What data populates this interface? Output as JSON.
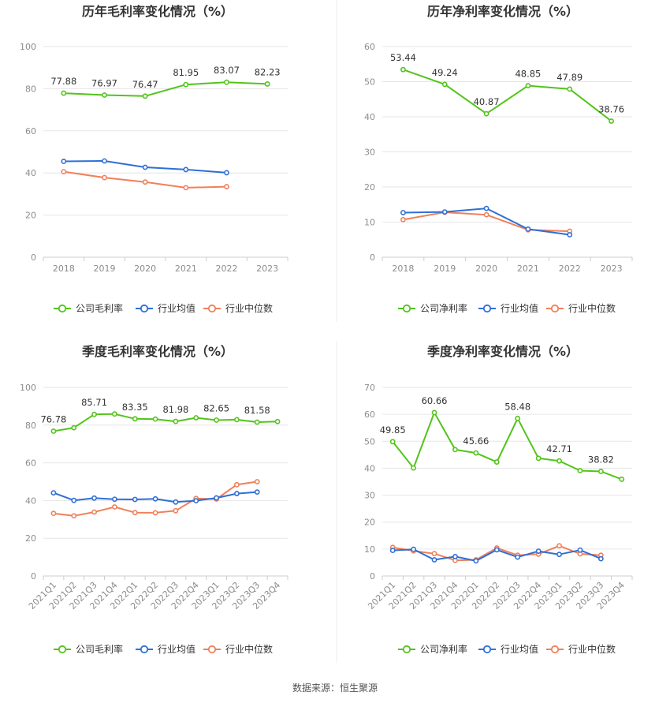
{
  "source_text": "数据来源：恒生聚源",
  "colors": {
    "company": "#52c41a",
    "industry_avg": "#2f6fd6",
    "industry_median": "#f0805a",
    "grid": "#e6e6e6",
    "axis": "#cccccc",
    "divider": "#eeeeee"
  },
  "chart_data": [
    {
      "id": "annual-gross",
      "type": "line",
      "title": "历年毛利率变化情况（%）",
      "categories": [
        "2018",
        "2019",
        "2020",
        "2021",
        "2022",
        "2023"
      ],
      "ylim": [
        0,
        100
      ],
      "yticks": [
        0,
        20,
        40,
        60,
        80,
        100
      ],
      "grid": true,
      "legend_position": "bottom",
      "x_rotated": false,
      "series": [
        {
          "name": "公司毛利率",
          "role": "company",
          "values": [
            77.88,
            76.97,
            76.47,
            81.95,
            83.07,
            82.23
          ],
          "labels": [
            "77.88",
            "76.97",
            "76.47",
            "81.95",
            "83.07",
            "82.23"
          ]
        },
        {
          "name": "行业均值",
          "role": "industry_avg",
          "values": [
            45.5,
            45.7,
            42.7,
            41.6,
            40.1,
            null
          ]
        },
        {
          "name": "行业中位数",
          "role": "industry_median",
          "values": [
            40.6,
            37.8,
            35.7,
            33.0,
            33.5,
            null
          ]
        }
      ]
    },
    {
      "id": "annual-net",
      "type": "line",
      "title": "历年净利率变化情况（%）",
      "categories": [
        "2018",
        "2019",
        "2020",
        "2021",
        "2022",
        "2023"
      ],
      "ylim": [
        0,
        60
      ],
      "yticks": [
        0,
        10,
        20,
        30,
        40,
        50,
        60
      ],
      "grid": true,
      "legend_position": "bottom",
      "x_rotated": false,
      "series": [
        {
          "name": "公司净利率",
          "role": "company",
          "values": [
            53.44,
            49.24,
            40.87,
            48.85,
            47.89,
            38.76
          ],
          "labels": [
            "53.44",
            "49.24",
            "40.87",
            "48.85",
            "47.89",
            "38.76"
          ]
        },
        {
          "name": "行业均值",
          "role": "industry_avg",
          "values": [
            12.7,
            12.9,
            13.9,
            8.0,
            6.4,
            null
          ]
        },
        {
          "name": "行业中位数",
          "role": "industry_median",
          "values": [
            10.7,
            12.8,
            12.1,
            7.8,
            7.4,
            null
          ]
        }
      ]
    },
    {
      "id": "quarterly-gross",
      "type": "line",
      "title": "季度毛利率变化情况（%）",
      "categories": [
        "2021Q1",
        "2021Q2",
        "2021Q3",
        "2021Q4",
        "2022Q1",
        "2022Q2",
        "2022Q3",
        "2022Q4",
        "2023Q1",
        "2023Q2",
        "2023Q3",
        "2023Q4"
      ],
      "ylim": [
        0,
        100
      ],
      "yticks": [
        0,
        20,
        40,
        60,
        80,
        100
      ],
      "grid": true,
      "legend_position": "bottom",
      "x_rotated": true,
      "series": [
        {
          "name": "公司毛利率",
          "role": "company",
          "values": [
            76.78,
            78.6,
            85.71,
            85.9,
            83.35,
            83.2,
            81.98,
            83.9,
            82.65,
            82.9,
            81.58,
            81.9
          ],
          "labels": [
            "76.78",
            null,
            "85.71",
            null,
            "83.35",
            null,
            "81.98",
            null,
            "82.65",
            null,
            "81.58",
            null
          ]
        },
        {
          "name": "行业均值",
          "role": "industry_avg",
          "values": [
            44.1,
            40.1,
            41.3,
            40.7,
            40.6,
            40.9,
            39.2,
            39.9,
            41.4,
            43.7,
            44.5,
            null
          ]
        },
        {
          "name": "行业中位数",
          "role": "industry_median",
          "values": [
            33.2,
            31.9,
            33.9,
            36.6,
            33.6,
            33.5,
            34.6,
            41.1,
            40.8,
            48.4,
            50.0,
            null
          ]
        }
      ]
    },
    {
      "id": "quarterly-net",
      "type": "line",
      "title": "季度净利率变化情况（%）",
      "categories": [
        "2021Q1",
        "2021Q2",
        "2021Q3",
        "2021Q4",
        "2022Q1",
        "2022Q2",
        "2022Q3",
        "2022Q4",
        "2023Q1",
        "2023Q2",
        "2023Q3",
        "2023Q4"
      ],
      "ylim": [
        0,
        70
      ],
      "yticks": [
        0,
        10,
        20,
        30,
        40,
        50,
        60,
        70
      ],
      "grid": true,
      "legend_position": "bottom",
      "x_rotated": true,
      "series": [
        {
          "name": "公司净利率",
          "role": "company",
          "values": [
            49.85,
            40.1,
            60.66,
            46.9,
            45.66,
            42.3,
            58.48,
            43.7,
            42.71,
            39.1,
            38.82,
            35.9
          ],
          "labels": [
            "49.85",
            null,
            "60.66",
            null,
            "45.66",
            null,
            "58.48",
            null,
            "42.71",
            null,
            "38.82",
            null
          ]
        },
        {
          "name": "行业均值",
          "role": "industry_avg",
          "values": [
            9.5,
            9.9,
            6.0,
            7.2,
            5.6,
            9.7,
            7.0,
            9.2,
            8.0,
            9.6,
            6.4,
            null
          ]
        },
        {
          "name": "行业中位数",
          "role": "industry_median",
          "values": [
            10.6,
            9.3,
            8.3,
            5.8,
            6.0,
            10.4,
            7.7,
            8.1,
            11.2,
            8.2,
            7.7,
            null
          ]
        }
      ]
    }
  ]
}
